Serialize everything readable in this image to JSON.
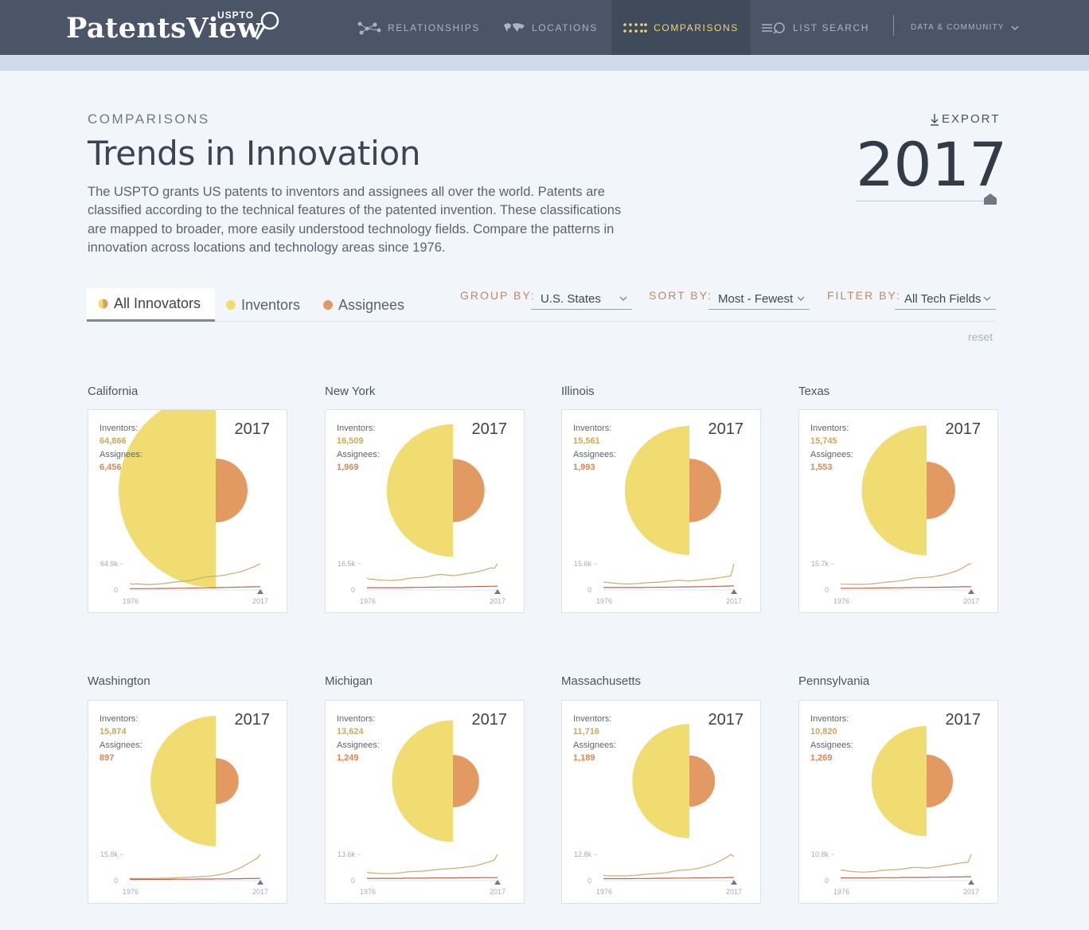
{
  "header": {
    "logo_text": "PatentsView",
    "logo_sup": "USPTO",
    "nav": [
      {
        "label": "RELATIONSHIPS",
        "icon": "network-icon"
      },
      {
        "label": "LOCATIONS",
        "icon": "world-map-icon"
      },
      {
        "label": "COMPARISONS",
        "icon": "dots-grid-icon",
        "active": true
      },
      {
        "label": "LIST SEARCH",
        "icon": "list-search-icon"
      },
      {
        "label": "DATA & COMMUNITY",
        "icon": "chevron-down-icon"
      }
    ]
  },
  "intro": {
    "eyebrow": "COMPARISONS",
    "title": "Trends in Innovation",
    "description": "The USPTO grants US patents to inventors and assignees all over the world. Patents are classified according to the technical features of the patented invention. These classifications are mapped to broader, more easily understood technology fields. Compare the patterns in innovation across locations and technology areas since 1976.",
    "export_label": "EXPORT",
    "year": "2017"
  },
  "tabs": [
    {
      "label": "All Innovators",
      "active": true
    },
    {
      "label": "Inventors",
      "active": false
    },
    {
      "label": "Assignees",
      "active": false
    }
  ],
  "controls": {
    "group_by_label": "GROUP BY:",
    "group_by_value": "U.S. States",
    "sort_by_label": "SORT BY:",
    "sort_by_value": "Most - Fewest",
    "filter_by_label": "FILTER BY:",
    "filter_by_value": "All Tech Fields",
    "reset_label": "reset"
  },
  "colors": {
    "inventor": "#f0dc70",
    "assignee": "#e39a62",
    "inventor_line": "#c8ad70",
    "assignee_line": "#b8674a",
    "header_bg": "#4a5667"
  },
  "card_labels": {
    "inventors": "Inventors:",
    "assignees": "Assignees:",
    "axis_start": "1976",
    "axis_end": "2017",
    "zero": "0"
  },
  "chart_data": [
    {
      "type": "line",
      "state": "California",
      "year": "2017",
      "inventors": "64,866",
      "assignees": "6,456",
      "inventors_value": 64866,
      "assignees_value": 6456,
      "ymax_label": "64.9k",
      "inventors_series": [
        14,
        13,
        14,
        13,
        13,
        12,
        12,
        12,
        13,
        13,
        14,
        15,
        16,
        17,
        18,
        19,
        20,
        20,
        21,
        22,
        24,
        26,
        28,
        30,
        31,
        32,
        33,
        33,
        34,
        35,
        36,
        38,
        40,
        41,
        43,
        45,
        48,
        51,
        54,
        57,
        61,
        64.9
      ],
      "assignees_series": [
        1.5,
        1.5,
        1.5,
        1.5,
        1.5,
        1.5,
        1.6,
        1.6,
        1.7,
        1.8,
        1.9,
        2,
        2.1,
        2.2,
        2.3,
        2.4,
        2.5,
        2.6,
        2.7,
        2.9,
        3,
        3.2,
        3.4,
        3.5,
        3.6,
        3.7,
        3.8,
        3.9,
        4,
        4.2,
        4.4,
        4.6,
        4.8,
        5,
        5.2,
        5.4,
        5.6,
        5.8,
        6,
        6.2,
        6.4,
        6.5
      ]
    },
    {
      "type": "line",
      "state": "New York",
      "year": "2017",
      "inventors": "16,509",
      "assignees": "1,969",
      "inventors_value": 16509,
      "assignees_value": 1969,
      "ymax_label": "16.5k",
      "inventors_series": [
        7,
        6.5,
        6.5,
        6,
        6,
        5.8,
        5.8,
        5.6,
        5.7,
        5.8,
        6,
        6.2,
        6.6,
        7,
        7.2,
        7.4,
        7.6,
        7.5,
        7.8,
        8.1,
        8.5,
        9,
        9.3,
        9.6,
        9.5,
        9.2,
        9,
        8.8,
        8.9,
        9.3,
        9.6,
        10,
        10.4,
        10.5,
        11,
        11.4,
        12,
        12.5,
        13.2,
        13.8,
        13.6,
        16.5
      ],
      "assignees_series": [
        1,
        1,
        1,
        1,
        1,
        1,
        1,
        1,
        1,
        1,
        1,
        1,
        1.1,
        1.1,
        1.1,
        1.2,
        1.2,
        1.2,
        1.2,
        1.3,
        1.3,
        1.3,
        1.4,
        1.4,
        1.4,
        1.4,
        1.4,
        1.4,
        1.5,
        1.5,
        1.5,
        1.6,
        1.6,
        1.7,
        1.7,
        1.8,
        1.8,
        1.8,
        1.9,
        1.9,
        1.9,
        2
      ]
    },
    {
      "type": "line",
      "state": "Illinois",
      "year": "2017",
      "inventors": "15,561",
      "assignees": "1,993",
      "inventors_value": 15561,
      "assignees_value": 1993,
      "ymax_label": "15.6k",
      "inventors_series": [
        4.5,
        4.2,
        4,
        3.8,
        3.6,
        3.4,
        3.3,
        3.2,
        3.2,
        3.3,
        3.4,
        3.5,
        3.7,
        3.9,
        4,
        4.1,
        4.2,
        4.2,
        4.4,
        4.6,
        4.8,
        5,
        5.3,
        5.5,
        5.4,
        5.3,
        5.2,
        5.1,
        5.2,
        5.4,
        5.6,
        5.8,
        6,
        6.2,
        6.4,
        6.6,
        6.9,
        7.2,
        7.5,
        7.8,
        8.2,
        15.6
      ],
      "assignees_series": [
        1,
        1,
        1,
        1,
        1,
        1,
        1,
        1,
        1,
        1,
        1,
        1,
        1,
        1.1,
        1.1,
        1.1,
        1.1,
        1.2,
        1.2,
        1.2,
        1.2,
        1.3,
        1.3,
        1.3,
        1.4,
        1.4,
        1.4,
        1.4,
        1.5,
        1.5,
        1.5,
        1.6,
        1.6,
        1.6,
        1.7,
        1.7,
        1.8,
        1.8,
        1.9,
        1.9,
        2,
        2
      ]
    },
    {
      "type": "line",
      "state": "Texas",
      "year": "2017",
      "inventors": "15,745",
      "assignees": "1,553",
      "inventors_value": 15745,
      "assignees_value": 1553,
      "ymax_label": "15.7k",
      "inventors_series": [
        3.2,
        3.1,
        3.1,
        3,
        3,
        3,
        3,
        3,
        3.1,
        3.2,
        3.4,
        3.6,
        3.8,
        4,
        4.2,
        4.4,
        4.6,
        4.8,
        5,
        5.3,
        5.6,
        6,
        6.4,
        6.8,
        7,
        7.1,
        7.2,
        7.2,
        7.4,
        7.7,
        8,
        8.4,
        8.8,
        9.2,
        9.7,
        10.4,
        11,
        11.8,
        12.8,
        14,
        15.2,
        15.7
      ],
      "assignees_series": [
        0.6,
        0.6,
        0.6,
        0.6,
        0.6,
        0.6,
        0.6,
        0.6,
        0.7,
        0.7,
        0.7,
        0.7,
        0.8,
        0.8,
        0.8,
        0.8,
        0.9,
        0.9,
        0.9,
        0.9,
        1,
        1,
        1,
        1.1,
        1.1,
        1.1,
        1.1,
        1.1,
        1.2,
        1.2,
        1.2,
        1.2,
        1.3,
        1.3,
        1.3,
        1.4,
        1.4,
        1.4,
        1.5,
        1.5,
        1.5,
        1.6
      ]
    },
    {
      "type": "line",
      "state": "Washington",
      "year": "2017",
      "inventors": "15,874",
      "assignees": "897",
      "inventors_value": 15874,
      "assignees_value": 897,
      "ymax_label": "15.9k",
      "inventors_series": [
        0.8,
        0.8,
        0.8,
        0.8,
        0.8,
        0.8,
        0.8,
        0.9,
        0.9,
        0.9,
        1,
        1,
        1.1,
        1.1,
        1.2,
        1.3,
        1.4,
        1.5,
        1.6,
        1.7,
        1.8,
        1.9,
        2,
        2.1,
        2.2,
        2.4,
        2.6,
        2.9,
        3.2,
        3.6,
        4,
        4.5,
        5.2,
        6,
        6.8,
        7.8,
        8.9,
        10,
        11.2,
        12.2,
        13.4,
        15.9
      ],
      "assignees_series": [
        0.3,
        0.3,
        0.3,
        0.3,
        0.3,
        0.3,
        0.3,
        0.3,
        0.3,
        0.3,
        0.3,
        0.3,
        0.3,
        0.3,
        0.4,
        0.4,
        0.4,
        0.4,
        0.4,
        0.4,
        0.4,
        0.5,
        0.5,
        0.5,
        0.5,
        0.5,
        0.5,
        0.6,
        0.6,
        0.6,
        0.6,
        0.6,
        0.7,
        0.7,
        0.7,
        0.7,
        0.8,
        0.8,
        0.8,
        0.8,
        0.9,
        0.9
      ]
    },
    {
      "type": "line",
      "state": "Michigan",
      "year": "2017",
      "inventors": "13,624",
      "assignees": "1,249",
      "inventors_value": 13624,
      "assignees_value": 1249,
      "ymax_label": "13.6k",
      "inventors_series": [
        4,
        3.8,
        3.6,
        3.5,
        3.4,
        3.3,
        3.3,
        3.3,
        3.4,
        3.5,
        3.7,
        3.9,
        4.1,
        4.3,
        4.4,
        4.5,
        4.6,
        4.6,
        4.7,
        4.9,
        5.1,
        5.3,
        5.5,
        5.7,
        5.8,
        5.9,
        6,
        6.1,
        6.2,
        6.4,
        6.6,
        6.8,
        7,
        7.2,
        7.5,
        7.9,
        8.4,
        8.9,
        9.4,
        9.9,
        10.6,
        13.6
      ],
      "assignees_series": [
        0.8,
        0.8,
        0.8,
        0.8,
        0.8,
        0.8,
        0.8,
        0.8,
        0.8,
        0.8,
        0.8,
        0.8,
        0.9,
        0.9,
        0.9,
        0.9,
        0.9,
        0.9,
        0.9,
        0.9,
        1,
        1,
        1,
        1,
        1,
        1,
        1,
        1,
        1,
        1.1,
        1.1,
        1.1,
        1.1,
        1.1,
        1.1,
        1.1,
        1.2,
        1.2,
        1.2,
        1.2,
        1.2,
        1.25
      ]
    },
    {
      "type": "line",
      "state": "Massachusetts",
      "year": "2017",
      "inventors": "11,716",
      "assignees": "1,189",
      "inventors_value": 11716,
      "assignees_value": 1189,
      "ymax_label": "12.8k",
      "inventors_series": [
        2.2,
        2.1,
        2,
        2,
        2,
        2,
        2,
        2,
        2.1,
        2.2,
        2.3,
        2.4,
        2.6,
        2.8,
        2.9,
        3,
        3.1,
        3.2,
        3.3,
        3.5,
        3.7,
        4,
        4.3,
        4.6,
        4.8,
        4.9,
        5,
        5.1,
        5.3,
        5.6,
        5.9,
        6.3,
        6.7,
        7.2,
        7.7,
        8.3,
        9,
        9.8,
        10.7,
        11.6,
        12.8,
        11.7
      ],
      "assignees_series": [
        0.6,
        0.6,
        0.6,
        0.6,
        0.6,
        0.6,
        0.6,
        0.6,
        0.6,
        0.6,
        0.7,
        0.7,
        0.7,
        0.7,
        0.7,
        0.7,
        0.8,
        0.8,
        0.8,
        0.8,
        0.8,
        0.8,
        0.9,
        0.9,
        0.9,
        0.9,
        0.9,
        0.9,
        1,
        1,
        1,
        1,
        1,
        1,
        1.1,
        1.1,
        1.1,
        1.1,
        1.1,
        1.2,
        1.2,
        1.2
      ]
    },
    {
      "type": "line",
      "state": "Pennsylvania",
      "year": "2017",
      "inventors": "10,820",
      "assignees": "1,269",
      "inventors_value": 10820,
      "assignees_value": 1269,
      "ymax_label": "10.8k",
      "inventors_series": [
        4.2,
        4,
        3.8,
        3.6,
        3.5,
        3.4,
        3.3,
        3.3,
        3.3,
        3.4,
        3.5,
        3.6,
        3.8,
        4,
        4.1,
        4.2,
        4.3,
        4.3,
        4.4,
        4.5,
        4.7,
        4.9,
        5.1,
        5.3,
        5.3,
        5.2,
        5.1,
        5,
        5.1,
        5.3,
        5.5,
        5.7,
        5.9,
        6.1,
        6.3,
        6.5,
        6.8,
        7,
        7.2,
        7.4,
        7.4,
        10.8
      ],
      "assignees_series": [
        0.8,
        0.8,
        0.8,
        0.8,
        0.8,
        0.8,
        0.8,
        0.8,
        0.8,
        0.8,
        0.8,
        0.8,
        0.9,
        0.9,
        0.9,
        0.9,
        0.9,
        0.9,
        0.9,
        1,
        1,
        1,
        1,
        1,
        1,
        1,
        1,
        1,
        1.1,
        1.1,
        1.1,
        1.1,
        1.1,
        1.1,
        1.2,
        1.2,
        1.2,
        1.2,
        1.2,
        1.3,
        1.3,
        1.3
      ]
    }
  ]
}
